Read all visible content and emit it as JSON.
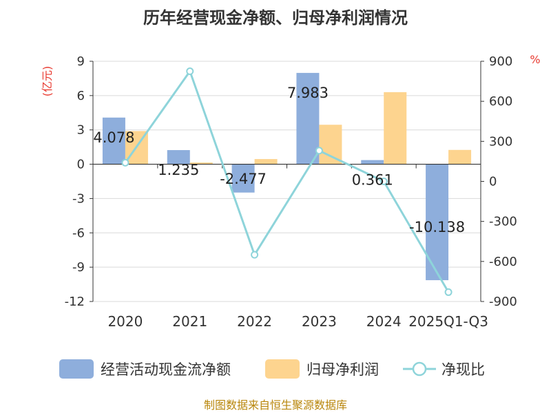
{
  "title": "历年经营现金净额、归母净利润情况",
  "source": "制图数据来自恒生聚源数据库",
  "colors": {
    "cash": "#8eaedc",
    "profit": "#fdd48f",
    "ratio": "#8ed4da",
    "axis": "#333333",
    "grid": "#d9d9d9",
    "unit": "#e8392f",
    "source": "#b8860b"
  },
  "chart_data": {
    "type": "bar",
    "title": "历年经营现金净额、归母净利润情况",
    "categories": [
      "2020",
      "2021",
      "2022",
      "2023",
      "2024",
      "2025Q1-Q3"
    ],
    "ylabel_left": "(亿元)",
    "ylabel_right": "%",
    "ylim_left": [
      -12,
      9
    ],
    "yticks_left": [
      9,
      6,
      3,
      0,
      -3,
      -6,
      -9,
      -12
    ],
    "ylim_right": [
      -900,
      900
    ],
    "yticks_right": [
      900,
      600,
      300,
      0,
      -300,
      -600,
      -900
    ],
    "grid": true,
    "legend_position": "bottom",
    "series": [
      {
        "name": "经营活动现金流净额",
        "type": "bar",
        "axis": "left",
        "values": [
          4.078,
          1.235,
          -2.477,
          7.983,
          0.361,
          -10.138
        ],
        "labels": [
          "4.078",
          "1.235",
          "-2.477",
          "7.983",
          "0.361",
          "-10.138"
        ]
      },
      {
        "name": "归母净利润",
        "type": "bar",
        "axis": "left",
        "values": [
          2.9,
          0.15,
          0.45,
          3.45,
          6.3,
          1.25
        ]
      },
      {
        "name": "净现比",
        "type": "line",
        "axis": "right",
        "values": [
          140,
          825,
          -550,
          230,
          0,
          -830
        ]
      }
    ]
  }
}
